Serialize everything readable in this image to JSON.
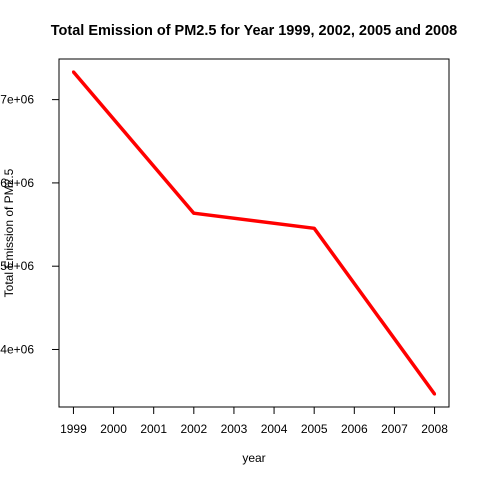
{
  "chart_data": {
    "type": "line",
    "title": "Total Emission of PM2.5 for Year 1999, 2002, 2005 and 2008",
    "xlabel": "year",
    "ylabel": "Total Emission of PM2.5",
    "x": [
      1999,
      2002,
      2005,
      2008
    ],
    "series": [
      {
        "values": [
          7332967,
          5635780,
          5454703,
          3464206
        ],
        "color": "#ff0000"
      }
    ],
    "xticks": [
      "1999",
      "2000",
      "2001",
      "2002",
      "2003",
      "2004",
      "2005",
      "2006",
      "2007",
      "2008"
    ],
    "yticks": [
      {
        "value": 4000000,
        "label": "4e+06"
      },
      {
        "value": 5000000,
        "label": "5e+06"
      },
      {
        "value": 6000000,
        "label": "6e+06"
      },
      {
        "value": 7000000,
        "label": "7e+06"
      }
    ],
    "xlim": [
      1998.64,
      2008.36
    ],
    "ylim": [
      3309416,
      7487757
    ],
    "grid": false,
    "legend": "none"
  }
}
